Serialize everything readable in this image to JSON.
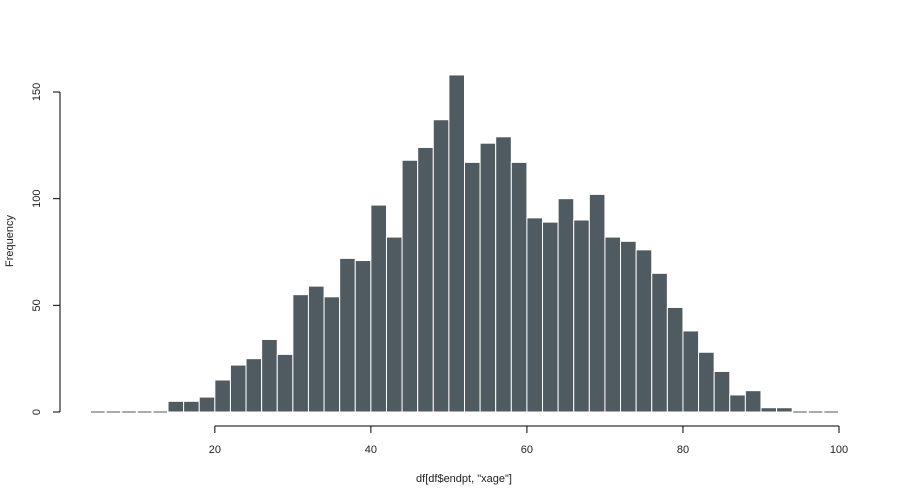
{
  "chart_data": {
    "type": "bar",
    "title": "",
    "xlabel": "df[df$endpt, \"xage\"]",
    "ylabel": "Frequency",
    "bin_width": 2,
    "bin_starts": [
      4,
      6,
      8,
      10,
      12,
      14,
      16,
      18,
      20,
      22,
      24,
      26,
      28,
      30,
      32,
      34,
      36,
      38,
      40,
      42,
      44,
      46,
      48,
      50,
      52,
      54,
      56,
      58,
      60,
      62,
      64,
      66,
      68,
      70,
      72,
      74,
      76,
      78,
      80,
      82,
      84,
      86,
      88,
      90,
      92,
      94,
      96,
      98
    ],
    "values": [
      0,
      0,
      0,
      0,
      0,
      5,
      5,
      7,
      15,
      22,
      25,
      34,
      27,
      55,
      59,
      54,
      72,
      71,
      97,
      82,
      118,
      124,
      137,
      158,
      117,
      126,
      129,
      117,
      91,
      89,
      100,
      90,
      102,
      82,
      80,
      76,
      65,
      49,
      38,
      28,
      19,
      8,
      10,
      2,
      2,
      0,
      0,
      0
    ],
    "xticks": [
      20,
      40,
      60,
      80,
      100
    ],
    "yticks": [
      0,
      50,
      100,
      150
    ],
    "xlim": [
      4,
      100
    ],
    "ylim": [
      0,
      160
    ],
    "grid": false,
    "bar_color": "#505a61",
    "bar_edge_color": "#ffffff"
  }
}
